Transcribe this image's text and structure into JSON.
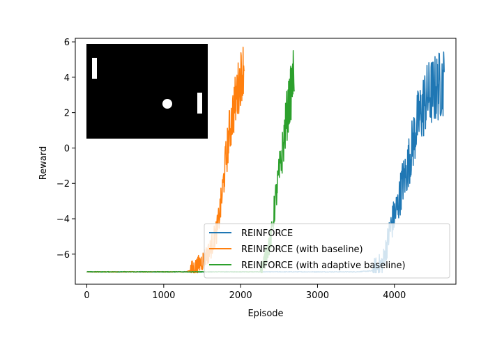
{
  "chart_data": {
    "type": "line",
    "xlabel": "Episode",
    "ylabel": "Reward",
    "xlim": [
      -150,
      4800
    ],
    "ylim": [
      -7.7,
      6.2
    ],
    "xticks": [
      0,
      1000,
      2000,
      3000,
      4000
    ],
    "xtick_labels": [
      "0",
      "1000",
      "2000",
      "3000",
      "4000"
    ],
    "yticks": [
      6,
      4,
      2,
      0,
      -2,
      -4,
      -6
    ],
    "ytick_labels": [
      "6",
      "4",
      "2",
      "0",
      "−2",
      "−4",
      "−6"
    ],
    "grid": false,
    "legend_position": "lower-right",
    "inset_image": "pong-game-frame",
    "series": [
      {
        "name": "REINFORCE",
        "color": "#1f77b4",
        "points": [
          [
            0,
            -7.0
          ],
          [
            3500,
            -7.0
          ],
          [
            3700,
            -6.95
          ],
          [
            3850,
            -6.5
          ],
          [
            3950,
            -4.5
          ],
          [
            4000,
            -3.8
          ],
          [
            4050,
            -3.2
          ],
          [
            4100,
            -2.0
          ],
          [
            4150,
            -1.5
          ],
          [
            4200,
            -0.5
          ],
          [
            4250,
            0.5
          ],
          [
            4300,
            1.5
          ],
          [
            4350,
            2.0
          ],
          [
            4400,
            2.7
          ],
          [
            4450,
            3.0
          ],
          [
            4500,
            3.2
          ],
          [
            4550,
            3.4
          ],
          [
            4600,
            3.6
          ],
          [
            4650,
            3.8
          ]
        ],
        "band": [
          0.6,
          2.0
        ]
      },
      {
        "name": "REINFORCE (with baseline)",
        "color": "#ff7f0e",
        "points": [
          [
            0,
            -7.0
          ],
          [
            1300,
            -7.0
          ],
          [
            1400,
            -6.8
          ],
          [
            1500,
            -6.4
          ],
          [
            1600,
            -5.8
          ],
          [
            1700,
            -4.5
          ],
          [
            1750,
            -3.0
          ],
          [
            1800,
            -1.0
          ],
          [
            1850,
            0.8
          ],
          [
            1900,
            2.0
          ],
          [
            1950,
            3.0
          ],
          [
            2000,
            4.0
          ],
          [
            2050,
            4.8
          ]
        ],
        "band": [
          0.5,
          1.6
        ]
      },
      {
        "name": "REINFORCE (with adaptive baseline)",
        "color": "#2ca02c",
        "points": [
          [
            0,
            -7.0
          ],
          [
            2250,
            -7.0
          ],
          [
            2300,
            -6.5
          ],
          [
            2400,
            -5.0
          ],
          [
            2450,
            -3.0
          ],
          [
            2500,
            -1.5
          ],
          [
            2550,
            0.0
          ],
          [
            2600,
            1.8
          ],
          [
            2650,
            3.0
          ],
          [
            2700,
            4.5
          ]
        ],
        "band": [
          0.5,
          1.6
        ]
      }
    ]
  }
}
